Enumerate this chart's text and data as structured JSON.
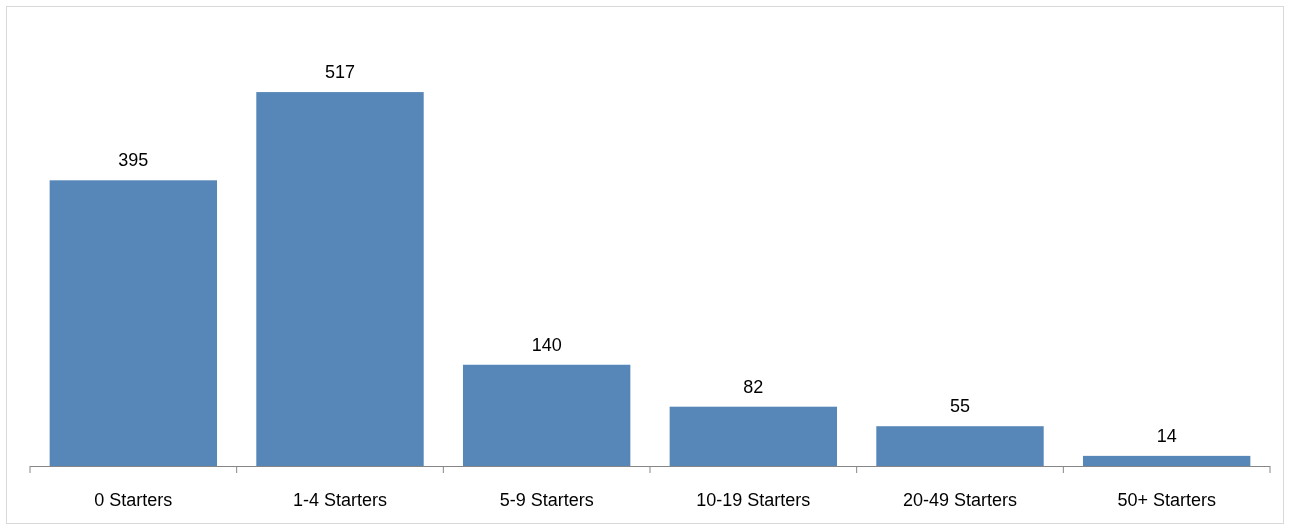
{
  "chart_data": {
    "type": "bar",
    "categories": [
      "0 Starters",
      "1-4 Starters",
      "5-9 Starters",
      "10-19 Starters",
      "20-49 Starters",
      "50+ Starters"
    ],
    "values": [
      395,
      517,
      140,
      82,
      55,
      14
    ],
    "color": "#5787b8",
    "data_labels": true
  }
}
